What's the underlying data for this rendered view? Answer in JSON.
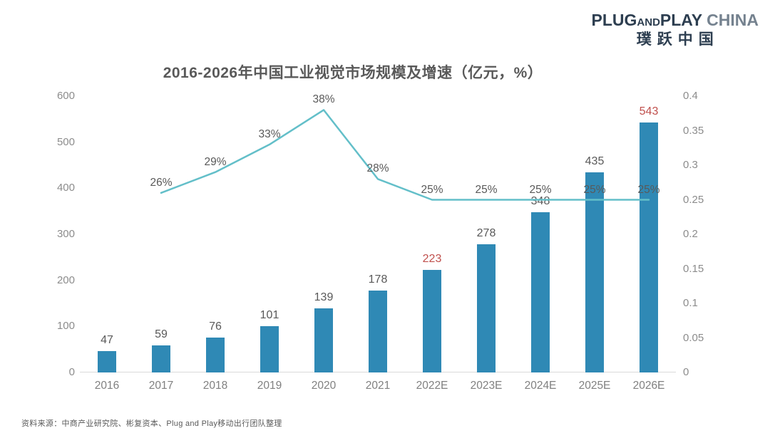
{
  "logo": {
    "plug": "PLUG",
    "and": "AND",
    "play": "PLAY",
    "china": "CHINA",
    "chinese": "璞跃中国"
  },
  "footer": {
    "source": "资料来源：中商产业研究院、彬复资本、Plug and Play移动出行团队整理"
  },
  "chart_data": {
    "type": "bar+line",
    "title": "2016-2026年中国工业视觉市场规模及增速（亿元，%）",
    "background": "#ffffff",
    "gridlines": false,
    "legend": "none",
    "categories": [
      "2016",
      "2017",
      "2018",
      "2019",
      "2020",
      "2021",
      "2022E",
      "2023E",
      "2024E",
      "2025E",
      "2026E"
    ],
    "series": [
      {
        "name": "市场规模（亿元）",
        "type": "bar",
        "color": "#2f89b5",
        "values": [
          47,
          59,
          76,
          101,
          139,
          178,
          223,
          278,
          348,
          435,
          543
        ],
        "label_color": "#595959",
        "highlight_indices": [
          6,
          10
        ],
        "highlight_label_color": "#c0504d",
        "axis": "left"
      },
      {
        "name": "增速（%）",
        "type": "line",
        "color": "#63bfc9",
        "values": [
          null,
          26,
          29,
          33,
          38,
          28,
          25,
          25,
          25,
          25,
          25
        ],
        "labels": [
          null,
          "26%",
          "29%",
          "33%",
          "38%",
          "28%",
          "25%",
          "25%",
          "25%",
          "25%",
          "25%"
        ],
        "label_color": "#595959",
        "axis": "right"
      }
    ],
    "left_axis": {
      "min": 0,
      "max": 600,
      "ticks": [
        600,
        500,
        400,
        300,
        200,
        100,
        0
      ],
      "label_color": "#8c8c8c"
    },
    "right_axis": {
      "min": 0,
      "max": 0.4,
      "ticks": [
        "0.4",
        "0.35",
        "0.3",
        "0.25",
        "0.2",
        "0.15",
        "0.1",
        "0.05",
        "0"
      ],
      "label_color": "#8c8c8c"
    },
    "axis_line_color": "#d9d9d9"
  }
}
